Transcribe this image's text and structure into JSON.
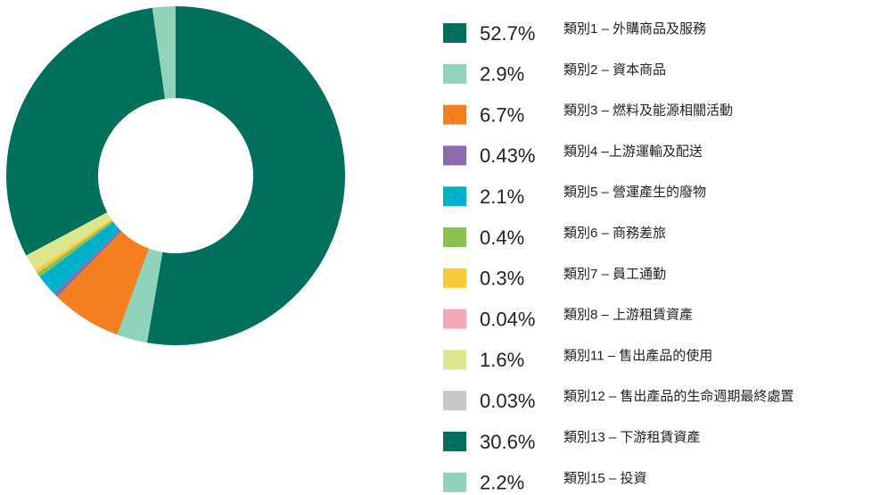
{
  "chart_data": {
    "type": "donut",
    "labels": [
      "類別1 – 外購商品及服務",
      "類別2 – 資本商品",
      "類別3 – 燃料及能源相關活動",
      "類別4 –上游運輸及配送",
      "類別5 – 營運產生的廢物",
      "類別6 – 商務差旅",
      "類別7 – 員工通勤",
      "類別8 – 上游租賃資產",
      "類別11 – 售出產品的使用",
      "類別12 – 售出產品的生命週期最終處置",
      "類別13 – 下游租賃資產",
      "類別15 – 投資"
    ],
    "values": [
      52.7,
      2.9,
      6.7,
      0.43,
      2.1,
      0.4,
      0.3,
      0.04,
      1.6,
      0.03,
      30.6,
      2.2
    ],
    "value_labels": [
      "52.7%",
      "2.9%",
      "6.7%",
      "0.43%",
      "2.1%",
      "0.4%",
      "0.3%",
      "0.04%",
      "1.6%",
      "0.03%",
      "30.6%",
      "2.2%"
    ],
    "colors": [
      "#006f5b",
      "#8fd3bb",
      "#f47f20",
      "#8a6bb0",
      "#00b2c9",
      "#8bc04f",
      "#f6c93b",
      "#f4a7b9",
      "#dde68a",
      "#c8c8c8",
      "#006f5b",
      "#8fd3bb"
    ],
    "legend": "right"
  }
}
